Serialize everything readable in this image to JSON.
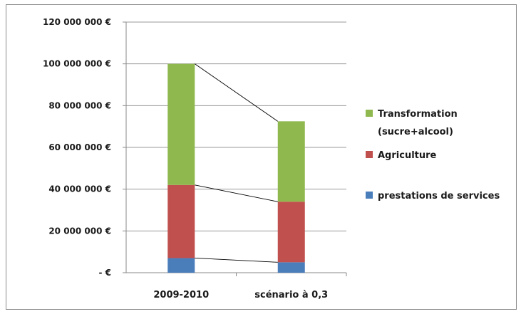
{
  "chart_data": {
    "type": "bar",
    "stacked": true,
    "categories": [
      "2009-2010",
      "scénario à 0,3"
    ],
    "series": [
      {
        "name": "prestations de services",
        "values": [
          7000000,
          5000000
        ],
        "color": "#4a7ebb"
      },
      {
        "name": "Agriculture",
        "values": [
          35000000,
          29000000
        ],
        "color": "#c0504d"
      },
      {
        "name": "Transformation (sucre+alcool)",
        "legend_lines": [
          "Transformation",
          "(sucre+alcool)"
        ],
        "values": [
          58000000,
          38500000
        ],
        "color": "#8fb84e"
      }
    ],
    "y_tick_labels": [
      "- €",
      "20 000 000 €",
      "40 000 000 €",
      "60 000 000 €",
      "80 000 000 €",
      "100 000 000 €",
      "120 000 000 €"
    ],
    "ylim": [
      0,
      120000000
    ],
    "grid": true,
    "legend_position": "right",
    "connector_lines": true
  }
}
